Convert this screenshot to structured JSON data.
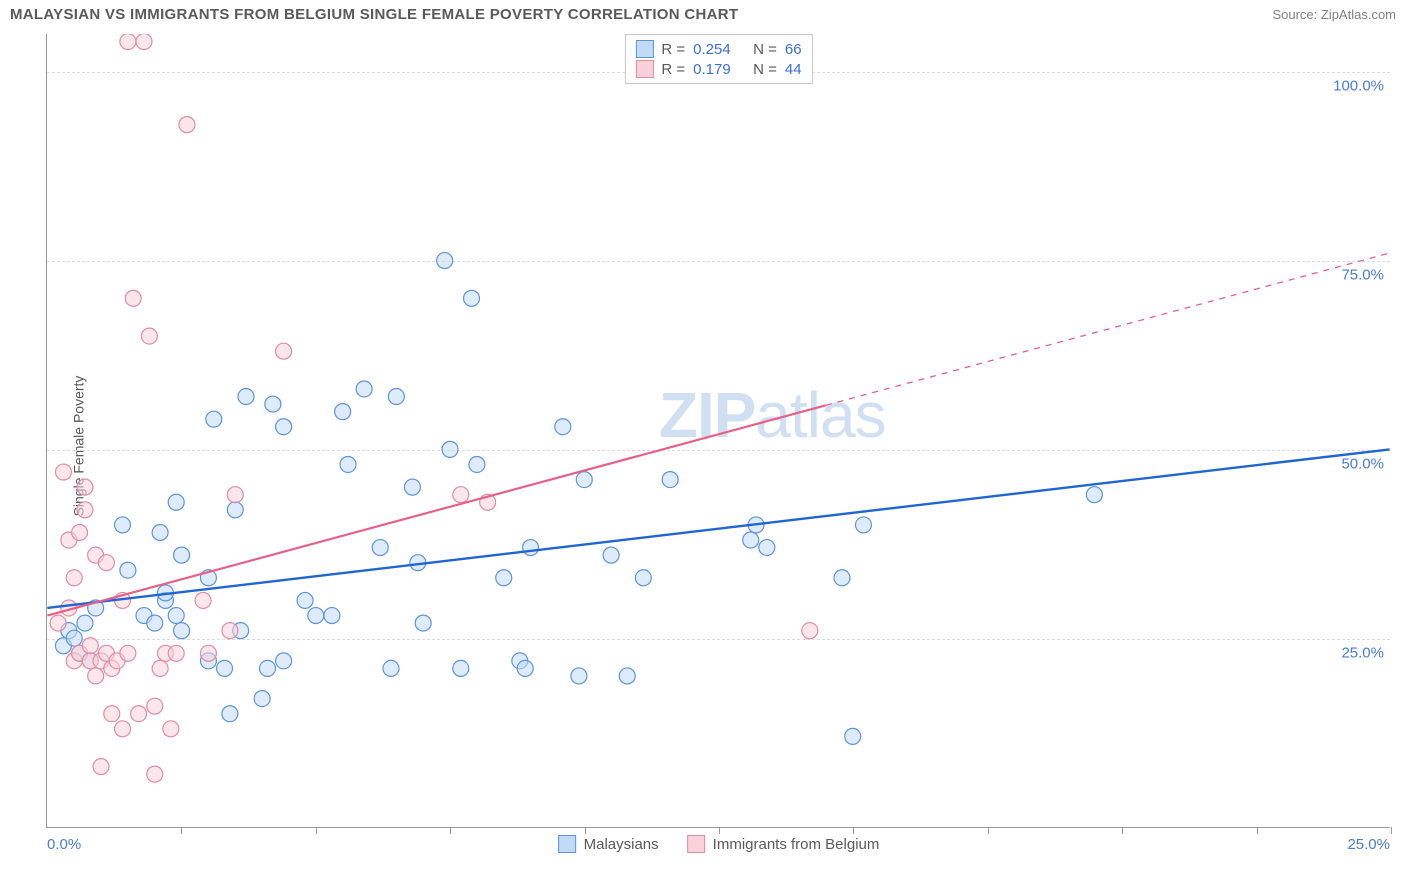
{
  "header": {
    "title": "MALAYSIAN VS IMMIGRANTS FROM BELGIUM SINGLE FEMALE POVERTY CORRELATION CHART",
    "source": "Source: ZipAtlas.com"
  },
  "watermark": {
    "bold": "ZIP",
    "light": "atlas"
  },
  "chart": {
    "type": "scatter",
    "ylabel": "Single Female Poverty",
    "xlim": [
      0,
      25
    ],
    "ylim": [
      0,
      105
    ],
    "xtick_labels": {
      "min": "0.0%",
      "max": "25.0%"
    },
    "ytick_positions": [
      25,
      50,
      75,
      100
    ],
    "ytick_labels": [
      "25.0%",
      "50.0%",
      "75.0%",
      "100.0%"
    ],
    "xtick_positions": [
      2.5,
      5,
      7.5,
      10,
      12.5,
      15,
      17.5,
      20,
      22.5,
      25
    ],
    "background_color": "#ffffff",
    "grid_color": "#dcdcdc",
    "axis_color": "#9b9b9b",
    "marker_radius": 8,
    "marker_stroke_width": 1.2,
    "series": [
      {
        "name": "Malaysians",
        "fill": "#c3daf6",
        "stroke": "#5c94db",
        "fill_opacity": 0.55,
        "points": [
          [
            0.3,
            24
          ],
          [
            0.4,
            26
          ],
          [
            0.5,
            25
          ],
          [
            0.6,
            23
          ],
          [
            0.7,
            27
          ],
          [
            0.8,
            22
          ],
          [
            0.9,
            29
          ],
          [
            1.4,
            40
          ],
          [
            1.5,
            34
          ],
          [
            1.8,
            28
          ],
          [
            2.0,
            27
          ],
          [
            2.1,
            39
          ],
          [
            2.2,
            30
          ],
          [
            2.2,
            31
          ],
          [
            2.4,
            28
          ],
          [
            2.4,
            43
          ],
          [
            2.5,
            36
          ],
          [
            2.5,
            26
          ],
          [
            3.0,
            33
          ],
          [
            3.1,
            54
          ],
          [
            3.3,
            21
          ],
          [
            3.4,
            15
          ],
          [
            3.5,
            42
          ],
          [
            3.6,
            26
          ],
          [
            3.7,
            57
          ],
          [
            4.0,
            17
          ],
          [
            4.1,
            21
          ],
          [
            4.2,
            56
          ],
          [
            4.4,
            53
          ],
          [
            4.4,
            22
          ],
          [
            4.8,
            30
          ],
          [
            5.0,
            28
          ],
          [
            5.3,
            28
          ],
          [
            5.5,
            55
          ],
          [
            5.6,
            48
          ],
          [
            5.9,
            58
          ],
          [
            6.2,
            37
          ],
          [
            6.5,
            57
          ],
          [
            6.8,
            45
          ],
          [
            6.9,
            35
          ],
          [
            7.0,
            27
          ],
          [
            7.4,
            75
          ],
          [
            7.5,
            50
          ],
          [
            7.7,
            21
          ],
          [
            7.9,
            70
          ],
          [
            8.0,
            48
          ],
          [
            8.5,
            33
          ],
          [
            8.8,
            22
          ],
          [
            8.9,
            21
          ],
          [
            9.0,
            37
          ],
          [
            9.6,
            53
          ],
          [
            10.0,
            46
          ],
          [
            10.5,
            36
          ],
          [
            10.8,
            20
          ],
          [
            11.1,
            33
          ],
          [
            11.6,
            46
          ],
          [
            13.1,
            38
          ],
          [
            13.2,
            40
          ],
          [
            13.4,
            37
          ],
          [
            14.8,
            33
          ],
          [
            15.0,
            12
          ],
          [
            15.2,
            40
          ],
          [
            19.5,
            44
          ],
          [
            9.9,
            20
          ],
          [
            6.4,
            21
          ],
          [
            3.0,
            22
          ]
        ],
        "regression": {
          "x1": 0,
          "y1": 29,
          "x2": 25,
          "y2": 50,
          "solid_to_x": 25
        },
        "line_color": "#2066d0",
        "line_width": 2.4
      },
      {
        "name": "Immigrants from Belgium",
        "fill": "#f8d1db",
        "stroke": "#e08ca5",
        "fill_opacity": 0.55,
        "points": [
          [
            0.2,
            27
          ],
          [
            0.3,
            47
          ],
          [
            0.4,
            38
          ],
          [
            0.4,
            29
          ],
          [
            0.5,
            33
          ],
          [
            0.5,
            22
          ],
          [
            0.6,
            39
          ],
          [
            0.6,
            23
          ],
          [
            0.7,
            42
          ],
          [
            0.8,
            24
          ],
          [
            0.8,
            22
          ],
          [
            0.9,
            36
          ],
          [
            0.9,
            20
          ],
          [
            1.0,
            22
          ],
          [
            1.0,
            8
          ],
          [
            1.1,
            35
          ],
          [
            1.1,
            23
          ],
          [
            1.2,
            15
          ],
          [
            1.2,
            21
          ],
          [
            1.3,
            22
          ],
          [
            1.4,
            30
          ],
          [
            1.4,
            13
          ],
          [
            1.5,
            23
          ],
          [
            1.5,
            104
          ],
          [
            1.6,
            70
          ],
          [
            1.7,
            15
          ],
          [
            1.8,
            104
          ],
          [
            1.9,
            65
          ],
          [
            2.0,
            16
          ],
          [
            2.0,
            7
          ],
          [
            2.1,
            21
          ],
          [
            2.2,
            23
          ],
          [
            2.3,
            13
          ],
          [
            2.4,
            23
          ],
          [
            2.6,
            93
          ],
          [
            2.9,
            30
          ],
          [
            3.0,
            23
          ],
          [
            3.4,
            26
          ],
          [
            3.5,
            44
          ],
          [
            4.4,
            63
          ],
          [
            7.7,
            44
          ],
          [
            8.2,
            43
          ],
          [
            14.2,
            26
          ],
          [
            0.7,
            45
          ]
        ],
        "regression": {
          "x1": 0,
          "y1": 28,
          "x2": 25,
          "y2": 76,
          "solid_to_x": 14.5
        },
        "line_color": "#e76088",
        "line_width": 2.2
      }
    ]
  },
  "stats": {
    "rows": [
      {
        "swatch": "blue",
        "r_label": "R =",
        "r_value": "0.254",
        "n_label": "N =",
        "n_value": "66"
      },
      {
        "swatch": "pink",
        "r_label": "R =",
        "r_value": "0.179",
        "n_label": "N =",
        "n_value": "44"
      }
    ]
  },
  "legend": {
    "items": [
      {
        "swatch": "blue",
        "label": "Malaysians"
      },
      {
        "swatch": "pink",
        "label": "Immigrants from Belgium"
      }
    ]
  }
}
